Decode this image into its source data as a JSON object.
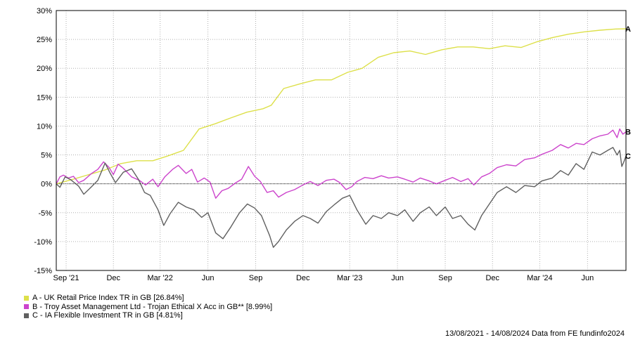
{
  "chart_data": {
    "type": "line",
    "x_range": [
      "2021-08-13",
      "2024-08-14"
    ],
    "ylim": [
      -15,
      30
    ],
    "y_ticks": [
      30,
      25,
      20,
      15,
      10,
      5,
      0,
      -5,
      -10,
      -15
    ],
    "y_tick_labels": [
      "30%",
      "25%",
      "20%",
      "15%",
      "10%",
      "5%",
      "0%",
      "-5%",
      "-10%",
      "-15%"
    ],
    "x_ticks": [
      {
        "date": "2021-09-01",
        "label": "Sep '21"
      },
      {
        "date": "2021-12-01",
        "label": "Dec"
      },
      {
        "date": "2022-03-01",
        "label": "Mar '22"
      },
      {
        "date": "2022-06-01",
        "label": "Jun"
      },
      {
        "date": "2022-09-01",
        "label": "Sep"
      },
      {
        "date": "2022-12-01",
        "label": "Dec"
      },
      {
        "date": "2023-03-01",
        "label": "Mar '23"
      },
      {
        "date": "2023-06-01",
        "label": "Jun"
      },
      {
        "date": "2023-09-01",
        "label": "Sep"
      },
      {
        "date": "2023-12-01",
        "label": "Dec"
      },
      {
        "date": "2024-03-01",
        "label": "Mar '24"
      },
      {
        "date": "2024-06-01",
        "label": "Jun"
      }
    ],
    "grid": true,
    "zero_line": true,
    "series": [
      {
        "name": "A - UK Retail Price Index TR in GB [26.84%]",
        "end_label": "A",
        "color": "#dde04a",
        "points": [
          [
            "2021-08-13",
            0
          ],
          [
            "2021-09-15",
            0.8
          ],
          [
            "2021-10-15",
            1.6
          ],
          [
            "2021-11-15",
            2.4
          ],
          [
            "2021-12-15",
            3.5
          ],
          [
            "2022-01-15",
            4.0
          ],
          [
            "2022-02-15",
            4.0
          ],
          [
            "2022-03-15",
            4.8
          ],
          [
            "2022-04-15",
            5.8
          ],
          [
            "2022-05-15",
            9.5
          ],
          [
            "2022-06-15",
            10.4
          ],
          [
            "2022-07-15",
            11.4
          ],
          [
            "2022-08-15",
            12.4
          ],
          [
            "2022-09-15",
            13.0
          ],
          [
            "2022-10-01",
            13.6
          ],
          [
            "2022-10-25",
            16.5
          ],
          [
            "2022-11-25",
            17.3
          ],
          [
            "2022-12-25",
            18.0
          ],
          [
            "2023-01-25",
            18.0
          ],
          [
            "2023-02-25",
            19.3
          ],
          [
            "2023-03-25",
            20.0
          ],
          [
            "2023-04-25",
            21.9
          ],
          [
            "2023-05-25",
            22.7
          ],
          [
            "2023-06-25",
            23.0
          ],
          [
            "2023-07-25",
            22.4
          ],
          [
            "2023-08-25",
            23.2
          ],
          [
            "2023-09-25",
            23.7
          ],
          [
            "2023-10-25",
            23.7
          ],
          [
            "2023-11-25",
            23.4
          ],
          [
            "2023-12-25",
            23.9
          ],
          [
            "2024-01-25",
            23.6
          ],
          [
            "2024-02-25",
            24.6
          ],
          [
            "2024-03-25",
            25.3
          ],
          [
            "2024-04-25",
            25.9
          ],
          [
            "2024-05-25",
            26.3
          ],
          [
            "2024-06-25",
            26.6
          ],
          [
            "2024-07-25",
            26.8
          ],
          [
            "2024-08-14",
            26.84
          ]
        ]
      },
      {
        "name": "B - Troy Asset Management Ltd - Trojan Ethical X Acc in GB** [8.99%]",
        "end_label": "B",
        "color": "#cc44cc",
        "points": [
          [
            "2021-08-13",
            0
          ],
          [
            "2021-08-20",
            1.2
          ],
          [
            "2021-08-27",
            1.5
          ],
          [
            "2021-09-05",
            1.0
          ],
          [
            "2021-09-15",
            1.3
          ],
          [
            "2021-09-25",
            0.2
          ],
          [
            "2021-10-05",
            0.6
          ],
          [
            "2021-10-20",
            1.8
          ],
          [
            "2021-11-01",
            2.5
          ],
          [
            "2021-11-12",
            3.8
          ],
          [
            "2021-11-22",
            2.9
          ],
          [
            "2021-12-01",
            1.6
          ],
          [
            "2021-12-10",
            3.4
          ],
          [
            "2021-12-20",
            2.7
          ],
          [
            "2022-01-05",
            1.2
          ],
          [
            "2022-01-20",
            0.6
          ],
          [
            "2022-02-01",
            -0.2
          ],
          [
            "2022-02-15",
            0.8
          ],
          [
            "2022-02-25",
            -0.5
          ],
          [
            "2022-03-10",
            1.2
          ],
          [
            "2022-03-25",
            2.5
          ],
          [
            "2022-04-05",
            3.2
          ],
          [
            "2022-04-20",
            1.8
          ],
          [
            "2022-05-01",
            2.5
          ],
          [
            "2022-05-12",
            0.3
          ],
          [
            "2022-05-25",
            1.0
          ],
          [
            "2022-06-05",
            0.3
          ],
          [
            "2022-06-16",
            -2.5
          ],
          [
            "2022-06-28",
            -1.2
          ],
          [
            "2022-07-10",
            -0.8
          ],
          [
            "2022-07-25",
            0.2
          ],
          [
            "2022-08-05",
            0.8
          ],
          [
            "2022-08-18",
            3.0
          ],
          [
            "2022-08-30",
            1.3
          ],
          [
            "2022-09-10",
            0.4
          ],
          [
            "2022-09-23",
            -1.5
          ],
          [
            "2022-10-05",
            -1.2
          ],
          [
            "2022-10-15",
            -2.3
          ],
          [
            "2022-10-30",
            -1.5
          ],
          [
            "2022-11-15",
            -1.0
          ],
          [
            "2022-12-01",
            -0.2
          ],
          [
            "2022-12-15",
            0.4
          ],
          [
            "2022-12-30",
            -0.3
          ],
          [
            "2023-01-15",
            0.6
          ],
          [
            "2023-01-30",
            0.8
          ],
          [
            "2023-02-10",
            0.2
          ],
          [
            "2023-02-22",
            -1.0
          ],
          [
            "2023-03-05",
            -0.5
          ],
          [
            "2023-03-15",
            0.4
          ],
          [
            "2023-03-30",
            1.1
          ],
          [
            "2023-04-15",
            0.9
          ],
          [
            "2023-05-01",
            1.4
          ],
          [
            "2023-05-15",
            1.0
          ],
          [
            "2023-06-01",
            1.2
          ],
          [
            "2023-06-15",
            0.8
          ],
          [
            "2023-07-01",
            0.3
          ],
          [
            "2023-07-15",
            1.0
          ],
          [
            "2023-08-01",
            0.5
          ],
          [
            "2023-08-15",
            0.0
          ],
          [
            "2023-09-01",
            0.6
          ],
          [
            "2023-09-15",
            1.1
          ],
          [
            "2023-10-01",
            0.4
          ],
          [
            "2023-10-15",
            0.9
          ],
          [
            "2023-10-26",
            -0.2
          ],
          [
            "2023-11-10",
            1.2
          ],
          [
            "2023-11-25",
            1.8
          ],
          [
            "2023-12-10",
            2.8
          ],
          [
            "2023-12-28",
            3.3
          ],
          [
            "2024-01-15",
            3.1
          ],
          [
            "2024-02-01",
            4.2
          ],
          [
            "2024-02-20",
            4.5
          ],
          [
            "2024-03-05",
            5.1
          ],
          [
            "2024-03-25",
            5.8
          ],
          [
            "2024-04-10",
            6.8
          ],
          [
            "2024-04-25",
            6.2
          ],
          [
            "2024-05-10",
            7.0
          ],
          [
            "2024-05-25",
            6.8
          ],
          [
            "2024-06-10",
            7.8
          ],
          [
            "2024-06-25",
            8.3
          ],
          [
            "2024-07-10",
            8.6
          ],
          [
            "2024-07-20",
            9.3
          ],
          [
            "2024-07-28",
            8.0
          ],
          [
            "2024-08-02",
            9.5
          ],
          [
            "2024-08-08",
            8.6
          ],
          [
            "2024-08-14",
            8.99
          ]
        ]
      },
      {
        "name": "C - IA Flexible Investment TR in GB [4.81%]",
        "end_label": "C",
        "color": "#606060",
        "points": [
          [
            "2021-08-13",
            0
          ],
          [
            "2021-08-20",
            -0.6
          ],
          [
            "2021-08-30",
            1.2
          ],
          [
            "2021-09-10",
            0.7
          ],
          [
            "2021-09-25",
            -0.4
          ],
          [
            "2021-10-05",
            -1.8
          ],
          [
            "2021-10-20",
            -0.5
          ],
          [
            "2021-11-01",
            0.6
          ],
          [
            "2021-11-15",
            3.6
          ],
          [
            "2021-11-25",
            1.8
          ],
          [
            "2021-12-05",
            0.2
          ],
          [
            "2021-12-20",
            2.0
          ],
          [
            "2022-01-05",
            2.6
          ],
          [
            "2022-01-18",
            0.8
          ],
          [
            "2022-01-30",
            -1.5
          ],
          [
            "2022-02-10",
            -2.0
          ],
          [
            "2022-02-25",
            -4.5
          ],
          [
            "2022-03-08",
            -7.2
          ],
          [
            "2022-03-20",
            -5.2
          ],
          [
            "2022-04-05",
            -3.2
          ],
          [
            "2022-04-20",
            -4.0
          ],
          [
            "2022-05-05",
            -4.5
          ],
          [
            "2022-05-20",
            -5.8
          ],
          [
            "2022-06-01",
            -5.0
          ],
          [
            "2022-06-16",
            -8.5
          ],
          [
            "2022-06-30",
            -9.5
          ],
          [
            "2022-07-15",
            -7.5
          ],
          [
            "2022-08-01",
            -5.0
          ],
          [
            "2022-08-16",
            -3.5
          ],
          [
            "2022-08-30",
            -4.2
          ],
          [
            "2022-09-12",
            -5.5
          ],
          [
            "2022-09-28",
            -9.0
          ],
          [
            "2022-10-05",
            -11.0
          ],
          [
            "2022-10-15",
            -10.0
          ],
          [
            "2022-10-30",
            -8.0
          ],
          [
            "2022-11-15",
            -6.5
          ],
          [
            "2022-12-01",
            -5.5
          ],
          [
            "2022-12-15",
            -6.0
          ],
          [
            "2022-12-30",
            -6.8
          ],
          [
            "2023-01-15",
            -4.8
          ],
          [
            "2023-02-01",
            -3.5
          ],
          [
            "2023-02-15",
            -2.5
          ],
          [
            "2023-03-01",
            -2.0
          ],
          [
            "2023-03-15",
            -4.5
          ],
          [
            "2023-04-01",
            -7.0
          ],
          [
            "2023-04-15",
            -5.5
          ],
          [
            "2023-05-01",
            -6.0
          ],
          [
            "2023-05-15",
            -5.0
          ],
          [
            "2023-06-01",
            -5.5
          ],
          [
            "2023-06-15",
            -4.5
          ],
          [
            "2023-07-01",
            -6.5
          ],
          [
            "2023-07-15",
            -5.0
          ],
          [
            "2023-08-01",
            -4.0
          ],
          [
            "2023-08-15",
            -5.5
          ],
          [
            "2023-09-01",
            -4.0
          ],
          [
            "2023-09-15",
            -6.0
          ],
          [
            "2023-10-01",
            -5.5
          ],
          [
            "2023-10-15",
            -7.0
          ],
          [
            "2023-10-28",
            -8.0
          ],
          [
            "2023-11-10",
            -5.5
          ],
          [
            "2023-11-25",
            -3.5
          ],
          [
            "2023-12-10",
            -1.5
          ],
          [
            "2023-12-28",
            -0.5
          ],
          [
            "2024-01-15",
            -1.5
          ],
          [
            "2024-02-01",
            -0.3
          ],
          [
            "2024-02-20",
            -0.5
          ],
          [
            "2024-03-05",
            0.5
          ],
          [
            "2024-03-25",
            1.0
          ],
          [
            "2024-04-10",
            2.3
          ],
          [
            "2024-04-25",
            1.5
          ],
          [
            "2024-05-10",
            3.5
          ],
          [
            "2024-05-25",
            2.5
          ],
          [
            "2024-06-10",
            5.5
          ],
          [
            "2024-06-25",
            5.0
          ],
          [
            "2024-07-10",
            5.8
          ],
          [
            "2024-07-20",
            6.3
          ],
          [
            "2024-07-28",
            5.0
          ],
          [
            "2024-08-02",
            5.8
          ],
          [
            "2024-08-06",
            3.0
          ],
          [
            "2024-08-10",
            3.8
          ],
          [
            "2024-08-14",
            4.81
          ]
        ]
      }
    ]
  },
  "footer": "13/08/2021 - 14/08/2024 Data from FE fundinfo2024"
}
